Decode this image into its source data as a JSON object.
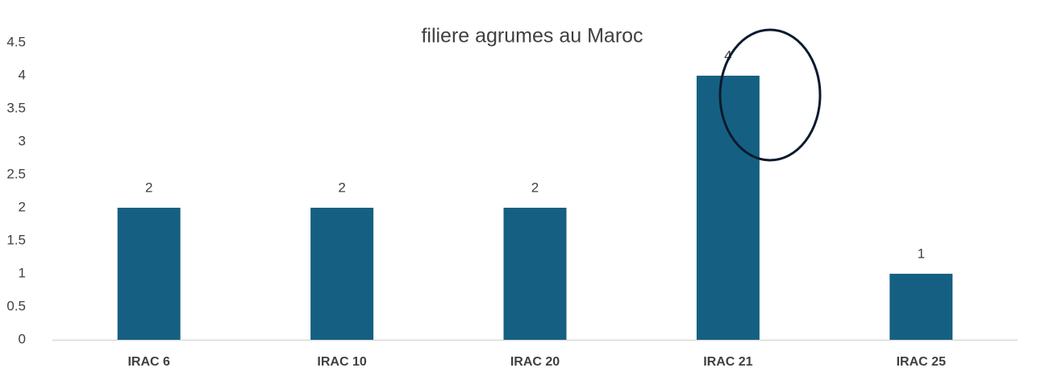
{
  "chart_data": {
    "type": "bar",
    "title": "filiere agrumes au Maroc",
    "categories": [
      "IRAC 6",
      "IRAC 10",
      "IRAC 20",
      "IRAC 21",
      "IRAC 25"
    ],
    "values": [
      2,
      2,
      2,
      4,
      1
    ],
    "color": "#156082",
    "ylim": [
      0,
      4.5
    ],
    "yticks": [
      0,
      0.5,
      1,
      1.5,
      2,
      2.5,
      3,
      3.5,
      4,
      4.5
    ],
    "grid": false
  }
}
